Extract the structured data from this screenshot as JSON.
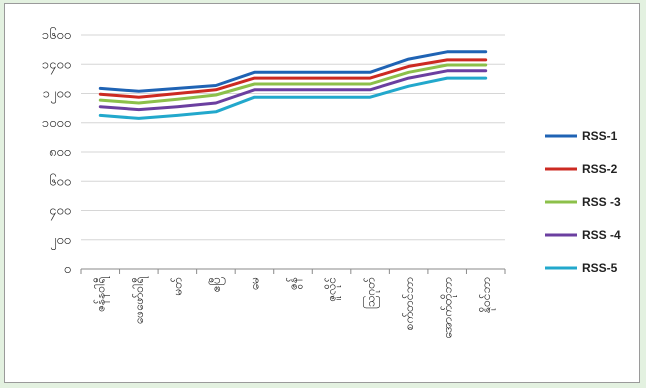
{
  "chart_data": {
    "type": "line",
    "categories": [
      "ဇန်နဝါရီ",
      "ဖေဖော်ဝါရီ",
      "မတ်",
      "ဧပြီ",
      "မေ",
      "ဇွန်",
      "ဇူလိုင်",
      "ဩဂုတ်",
      "စက်တင်ဘာ",
      "အောက်တိုဘာ",
      "နိုဝင်ဘာ"
    ],
    "y_ticks": [
      "၀",
      "၂၀၀",
      "၄၀၀",
      "၆၀၀",
      "၈၀၀",
      "၁၀၀၀",
      "၁၂၀၀",
      "၁၄၀၀",
      "၁၆၀၀"
    ],
    "ylim": [
      0,
      1600
    ],
    "series": [
      {
        "name": "RSS-1",
        "color": "#1f63b4",
        "values": [
          1235,
          1215,
          1235,
          1255,
          1345,
          1345,
          1345,
          1345,
          1435,
          1485,
          1485
        ]
      },
      {
        "name": "RSS-2",
        "color": "#cc2a22",
        "values": [
          1195,
          1175,
          1200,
          1225,
          1305,
          1305,
          1305,
          1305,
          1385,
          1430,
          1430
        ]
      },
      {
        "name": "RSS -3",
        "color": "#8cc04a",
        "values": [
          1155,
          1135,
          1160,
          1190,
          1265,
          1265,
          1265,
          1265,
          1345,
          1395,
          1395
        ]
      },
      {
        "name": "RSS -4",
        "color": "#6b3fa0",
        "values": [
          1110,
          1090,
          1110,
          1135,
          1225,
          1225,
          1225,
          1225,
          1305,
          1355,
          1355
        ]
      },
      {
        "name": "RSS-5",
        "color": "#22a8cc",
        "values": [
          1050,
          1030,
          1050,
          1075,
          1175,
          1175,
          1175,
          1175,
          1250,
          1305,
          1305
        ]
      }
    ],
    "grid": true,
    "legend": "right"
  }
}
